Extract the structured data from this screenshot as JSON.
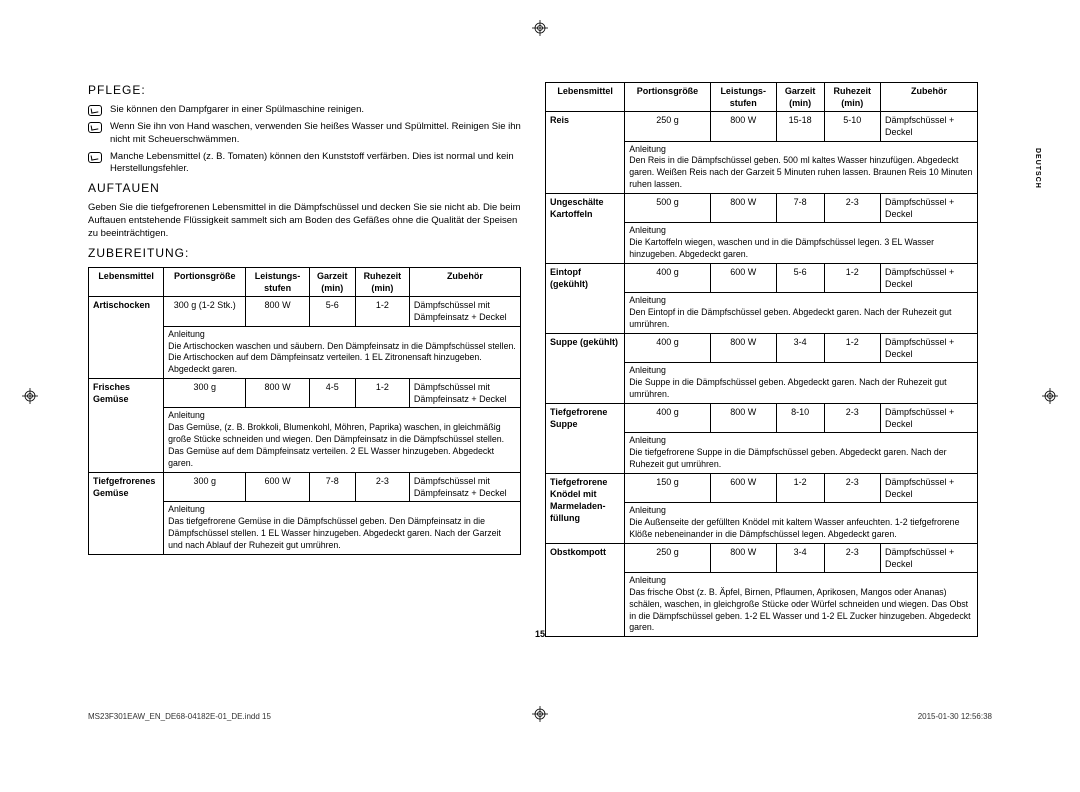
{
  "headings": {
    "pflege": "PFLEGE:",
    "auftauen": "AUFTAUEN",
    "zubereitung": "ZUBEREITUNG:"
  },
  "pflege_items": [
    "Sie können den Dampfgarer in einer Spülmaschine reinigen.",
    "Wenn Sie ihn von Hand waschen, verwenden Sie heißes Wasser und Spülmittel. Reinigen Sie ihn nicht mit Scheuerschwämmen.",
    "Manche Lebensmittel (z. B. Tomaten) können den Kunststoff verfärben. Dies ist normal und kein Herstellungsfehler."
  ],
  "auftauen_text": "Geben Sie die tiefgefrorenen Lebensmittel in die Dämpfschüssel und decken Sie sie nicht ab. Die beim Auftauen entstehende Flüssigkeit sammelt sich am Boden des Gefäßes ohne die Qualität der Speisen zu beeinträchtigen.",
  "columns": {
    "food": "Lebensmittel",
    "portion": "Portionsgröße",
    "power": "Leistungs-\nstufen",
    "cook": "Garzeit\n(min)",
    "rest": "Ruhezeit\n(min)",
    "acc": "Zubehör"
  },
  "instr_label": "Anleitung",
  "table_left": [
    {
      "food": "Artischocken",
      "portion": "300 g (1-2 Stk.)",
      "power": "800 W",
      "cook": "5-6",
      "rest": "1-2",
      "acc": "Dämpfschüssel mit Dämpfeinsatz + Deckel",
      "instr": "Die Artischocken waschen und säubern. Den Dämpfeinsatz in die Dämpfschüssel stellen. Die Artischocken auf dem Dämpfeinsatz verteilen. 1 EL Zitronensaft hinzugeben. Abgedeckt garen."
    },
    {
      "food": "Frisches Gemüse",
      "portion": "300 g",
      "power": "800 W",
      "cook": "4-5",
      "rest": "1-2",
      "acc": "Dämpfschüssel mit Dämpfeinsatz + Deckel",
      "instr": "Das Gemüse, (z. B. Brokkoli, Blumenkohl, Möhren, Paprika) waschen, in gleichmäßig große Stücke schneiden und wiegen. Den Dämpfeinsatz in die Dämpfschüssel stellen. Das Gemüse auf dem Dämpfeinsatz verteilen. 2 EL Wasser hinzugeben. Abgedeckt garen."
    },
    {
      "food": "Tiefgefrorenes Gemüse",
      "portion": "300 g",
      "power": "600 W",
      "cook": "7-8",
      "rest": "2-3",
      "acc": "Dämpfschüssel mit Dämpfeinsatz + Deckel",
      "instr": "Das tiefgefrorene Gemüse in die Dämpfschüssel geben. Den Dämpfeinsatz in die Dämpfschüssel stellen. 1 EL Wasser hinzugeben. Abgedeckt garen. Nach der Garzeit und nach Ablauf der Ruhezeit gut umrühren."
    }
  ],
  "table_right": [
    {
      "food": "Reis",
      "portion": "250 g",
      "power": "800 W",
      "cook": "15-18",
      "rest": "5-10",
      "acc": "Dämpfschüssel + Deckel",
      "instr": "Den Reis in die Dämpfschüssel geben. 500 ml kaltes Wasser hinzufügen. Abgedeckt garen. Weißen Reis nach der Garzeit 5 Minuten ruhen lassen. Braunen Reis 10 Minuten ruhen lassen."
    },
    {
      "food": "Ungeschälte Kartoffeln",
      "portion": "500 g",
      "power": "800 W",
      "cook": "7-8",
      "rest": "2-3",
      "acc": "Dämpfschüssel + Deckel",
      "instr": "Die Kartoffeln wiegen, waschen und in die Dämpfschüssel legen. 3 EL Wasser hinzugeben. Abgedeckt garen."
    },
    {
      "food": "Eintopf (gekühlt)",
      "portion": "400 g",
      "power": "600 W",
      "cook": "5-6",
      "rest": "1-2",
      "acc": "Dämpfschüssel + Deckel",
      "instr": "Den Eintopf in die Dämpfschüssel geben. Abgedeckt garen. Nach der Ruhezeit gut umrühren."
    },
    {
      "food": "Suppe (gekühlt)",
      "portion": "400 g",
      "power": "800 W",
      "cook": "3-4",
      "rest": "1-2",
      "acc": "Dämpfschüssel + Deckel",
      "instr": "Die Suppe in die Dämpfschüssel geben. Abgedeckt garen. Nach der Ruhezeit gut umrühren."
    },
    {
      "food": "Tiefgefrorene Suppe",
      "portion": "400 g",
      "power": "800 W",
      "cook": "8-10",
      "rest": "2-3",
      "acc": "Dämpfschüssel + Deckel",
      "instr": "Die tiefgefrorene Suppe in die Dämpfschüssel geben. Abgedeckt garen. Nach der Ruhezeit gut umrühren."
    },
    {
      "food": "Tiefgefrorene Knödel mit Marmeladen-füllung",
      "portion": "150 g",
      "power": "600 W",
      "cook": "1-2",
      "rest": "2-3",
      "acc": "Dämpfschüssel + Deckel",
      "instr": "Die Außenseite der gefüllten Knödel mit kaltem Wasser anfeuchten. 1-2 tiefgefrorene Klöße nebeneinander in die Dämpfschüssel legen. Abgedeckt garen."
    },
    {
      "food": "Obstkompott",
      "portion": "250 g",
      "power": "800 W",
      "cook": "3-4",
      "rest": "2-3",
      "acc": "Dämpfschüssel + Deckel",
      "instr": "Das frische Obst (z. B. Äpfel, Birnen, Pflaumen, Aprikosen, Mangos oder Ananas) schälen, waschen, in gleichgroße Stücke oder Würfel schneiden und wiegen. Das Obst in die Dämpfschüssel geben. 1-2 EL Wasser und 1-2 EL Zucker hinzugeben. Abgedeckt garen."
    }
  ],
  "page_number": "15",
  "footer_left": "MS23F301EAW_EN_DE68-04182E-01_DE.indd   15",
  "footer_right": "2015-01-30   12:56:38",
  "side_lang": "DEUTSCH"
}
